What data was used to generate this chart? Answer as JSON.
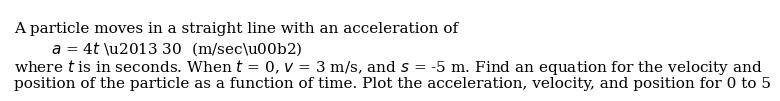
{
  "line1": "A particle moves in a straight line with an acceleration of",
  "line2_italic": "a",
  "line2_eq": " = 4 ",
  "line2_t": "t",
  "line2_rest": " – 30  (m/sec²)",
  "line3": "where ",
  "line3_t": "t",
  "line3_mid": " is in seconds. When ",
  "line3_t2": "t",
  "line3_mid2": " = 0, ",
  "line3_v": "v",
  "line3_mid3": " = 3 m/s, and ",
  "line3_s": "s",
  "line3_mid4": " = -5 m. Find an equation for the velocity and",
  "line4": "position of the particle as a function of time. Plot the acceleration, velocity, and position for 0 to 5",
  "bg_color": "#ffffff",
  "text_color": "#000000",
  "font_size": 11,
  "fig_width": 6.19,
  "fig_height": 0.84
}
